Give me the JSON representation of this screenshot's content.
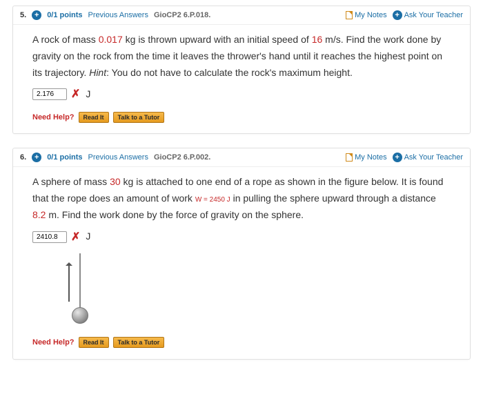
{
  "questions": [
    {
      "number": "5.",
      "points": "0/1 points",
      "prev_answers": "Previous Answers",
      "code": "GioCP2 6.P.018.",
      "my_notes": "My Notes",
      "ask_teacher": "Ask Your Teacher",
      "text_pre": "A rock of mass ",
      "mass": "0.017",
      "text_mid1": " kg is thrown upward with an initial speed of ",
      "speed": "16",
      "text_mid2": " m/s. Find the work done by gravity on the rock from the time it leaves the thrower's hand until it reaches the highest point on its trajectory. ",
      "hint_label": "Hint",
      "text_post": ": You do not have to calculate the rock's maximum height.",
      "answer_value": "2.176",
      "unit": "J",
      "need_help": "Need Help?",
      "read_it": "Read It",
      "talk_tutor": "Talk to a Tutor"
    },
    {
      "number": "6.",
      "points": "0/1 points",
      "prev_answers": "Previous Answers",
      "code": "GioCP2 6.P.002.",
      "my_notes": "My Notes",
      "ask_teacher": "Ask Your Teacher",
      "text_pre": "A sphere of mass ",
      "mass": "30",
      "text_mid1": " kg is attached to one end of a rope as shown in the figure below. It is found that the rope does an amount of work ",
      "work_var": "W = ",
      "work_val": "2450 J",
      "text_mid2": " in pulling the sphere upward through a distance ",
      "distance": "8.2",
      "text_post": " m. Find the work done by the force of gravity on the sphere.",
      "answer_value": "2410.8",
      "unit": "J",
      "need_help": "Need Help?",
      "read_it": "Read It",
      "talk_tutor": "Talk to a Tutor"
    }
  ],
  "colors": {
    "link": "#1b6ea5",
    "red": "#c62828",
    "btn_top": "#f6b94b",
    "btn_bottom": "#e59a1e"
  }
}
